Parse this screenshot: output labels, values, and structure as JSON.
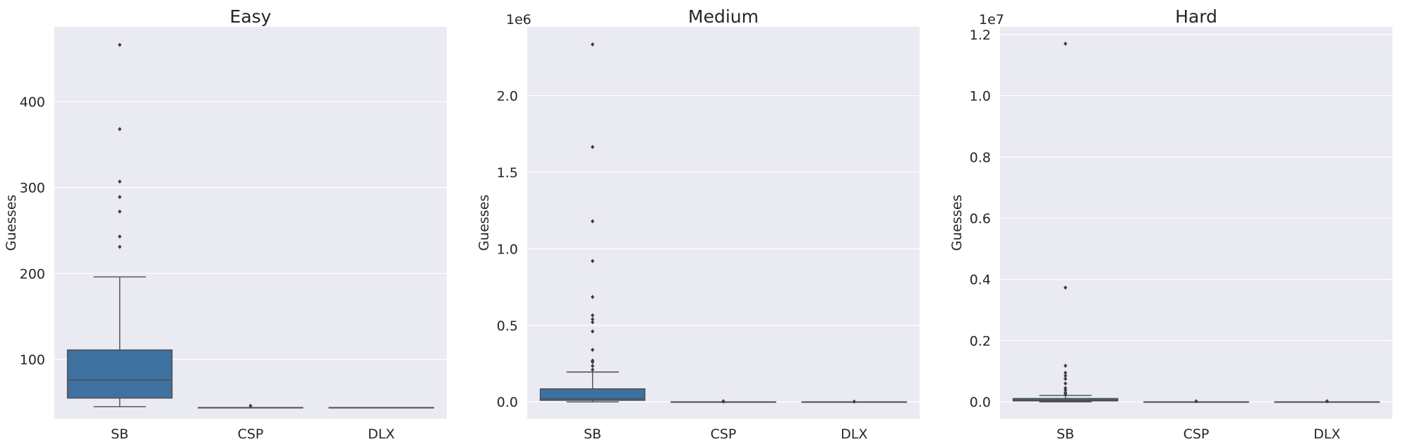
{
  "chart_data": [
    {
      "type": "box",
      "title": "Easy",
      "xlabel": "",
      "ylabel": "Guesses",
      "ylim": [
        31,
        487
      ],
      "yticks": [
        100,
        200,
        300,
        400
      ],
      "ytick_labels": [
        "100",
        "200",
        "300",
        "400"
      ],
      "offset_text": "",
      "categories": [
        "SB",
        "CSP",
        "DLX"
      ],
      "boxes": [
        {
          "category": "SB",
          "whislo": 45,
          "q1": 55,
          "med": 76,
          "q3": 111,
          "whishi": 196,
          "fliers": [
            231,
            243,
            272,
            289,
            307,
            368,
            466
          ]
        },
        {
          "category": "CSP",
          "whislo": 44,
          "q1": 44,
          "med": 44,
          "q3": 44,
          "whishi": 44,
          "fliers": [
            46
          ]
        },
        {
          "category": "DLX",
          "whislo": 44,
          "q1": 44,
          "med": 44,
          "q3": 44,
          "whishi": 44,
          "fliers": []
        }
      ]
    },
    {
      "type": "box",
      "title": "Medium",
      "xlabel": "",
      "ylabel": "Guesses",
      "ylim": [
        -0.11,
        2.45
      ],
      "yticks": [
        0.0,
        0.5,
        1.0,
        1.5,
        2.0
      ],
      "ytick_labels": [
        "0.0",
        "0.5",
        "1.0",
        "1.5",
        "2.0"
      ],
      "offset_text": "1e6",
      "categories": [
        "SB",
        "CSP",
        "DLX"
      ],
      "boxes": [
        {
          "category": "SB",
          "whislo": 0.0,
          "q1": 0.01,
          "med": 0.02,
          "q3": 0.085,
          "whishi": 0.195,
          "fliers": [
            0.21,
            0.235,
            0.26,
            0.27,
            0.34,
            0.46,
            0.52,
            0.54,
            0.565,
            0.685,
            0.92,
            1.18,
            1.665,
            2.335
          ]
        },
        {
          "category": "CSP",
          "whislo": 0.0,
          "q1": 0.0,
          "med": 0.0,
          "q3": 0.0,
          "whishi": 0.0,
          "fliers": [
            0.002,
            0.004
          ]
        },
        {
          "category": "DLX",
          "whislo": 0.0,
          "q1": 0.0,
          "med": 0.0,
          "q3": 0.0,
          "whishi": 0.0,
          "fliers": [
            0.002
          ]
        }
      ]
    },
    {
      "type": "box",
      "title": "Hard",
      "xlabel": "",
      "ylabel": "Guesses",
      "ylim": [
        -0.055,
        1.225
      ],
      "yticks": [
        0.0,
        0.2,
        0.4,
        0.6,
        0.8,
        1.0,
        1.2
      ],
      "ytick_labels": [
        "0.0",
        "0.2",
        "0.4",
        "0.6",
        "0.8",
        "1.0",
        "1.2"
      ],
      "offset_text": "1e7",
      "categories": [
        "SB",
        "CSP",
        "DLX"
      ],
      "boxes": [
        {
          "category": "SB",
          "whislo": 0.0,
          "q1": 0.003,
          "med": 0.006,
          "q3": 0.011,
          "whishi": 0.021,
          "fliers": [
            0.025,
            0.03,
            0.038,
            0.045,
            0.06,
            0.075,
            0.085,
            0.095,
            0.118,
            0.373,
            1.17
          ]
        },
        {
          "category": "CSP",
          "whislo": 0.0,
          "q1": 0.0,
          "med": 0.0,
          "q3": 0.0,
          "whishi": 0.0,
          "fliers": [
            0.002
          ]
        },
        {
          "category": "DLX",
          "whislo": 0.0,
          "q1": 0.0,
          "med": 0.0,
          "q3": 0.0,
          "whishi": 0.0,
          "fliers": [
            0.002
          ]
        }
      ]
    }
  ],
  "style": {
    "background": "#eaeaf2",
    "grid_color": "#ffffff",
    "box_fill": "#3f71a0",
    "line_color": "#4d4d4d",
    "text_color": "#262626",
    "grid": true
  }
}
